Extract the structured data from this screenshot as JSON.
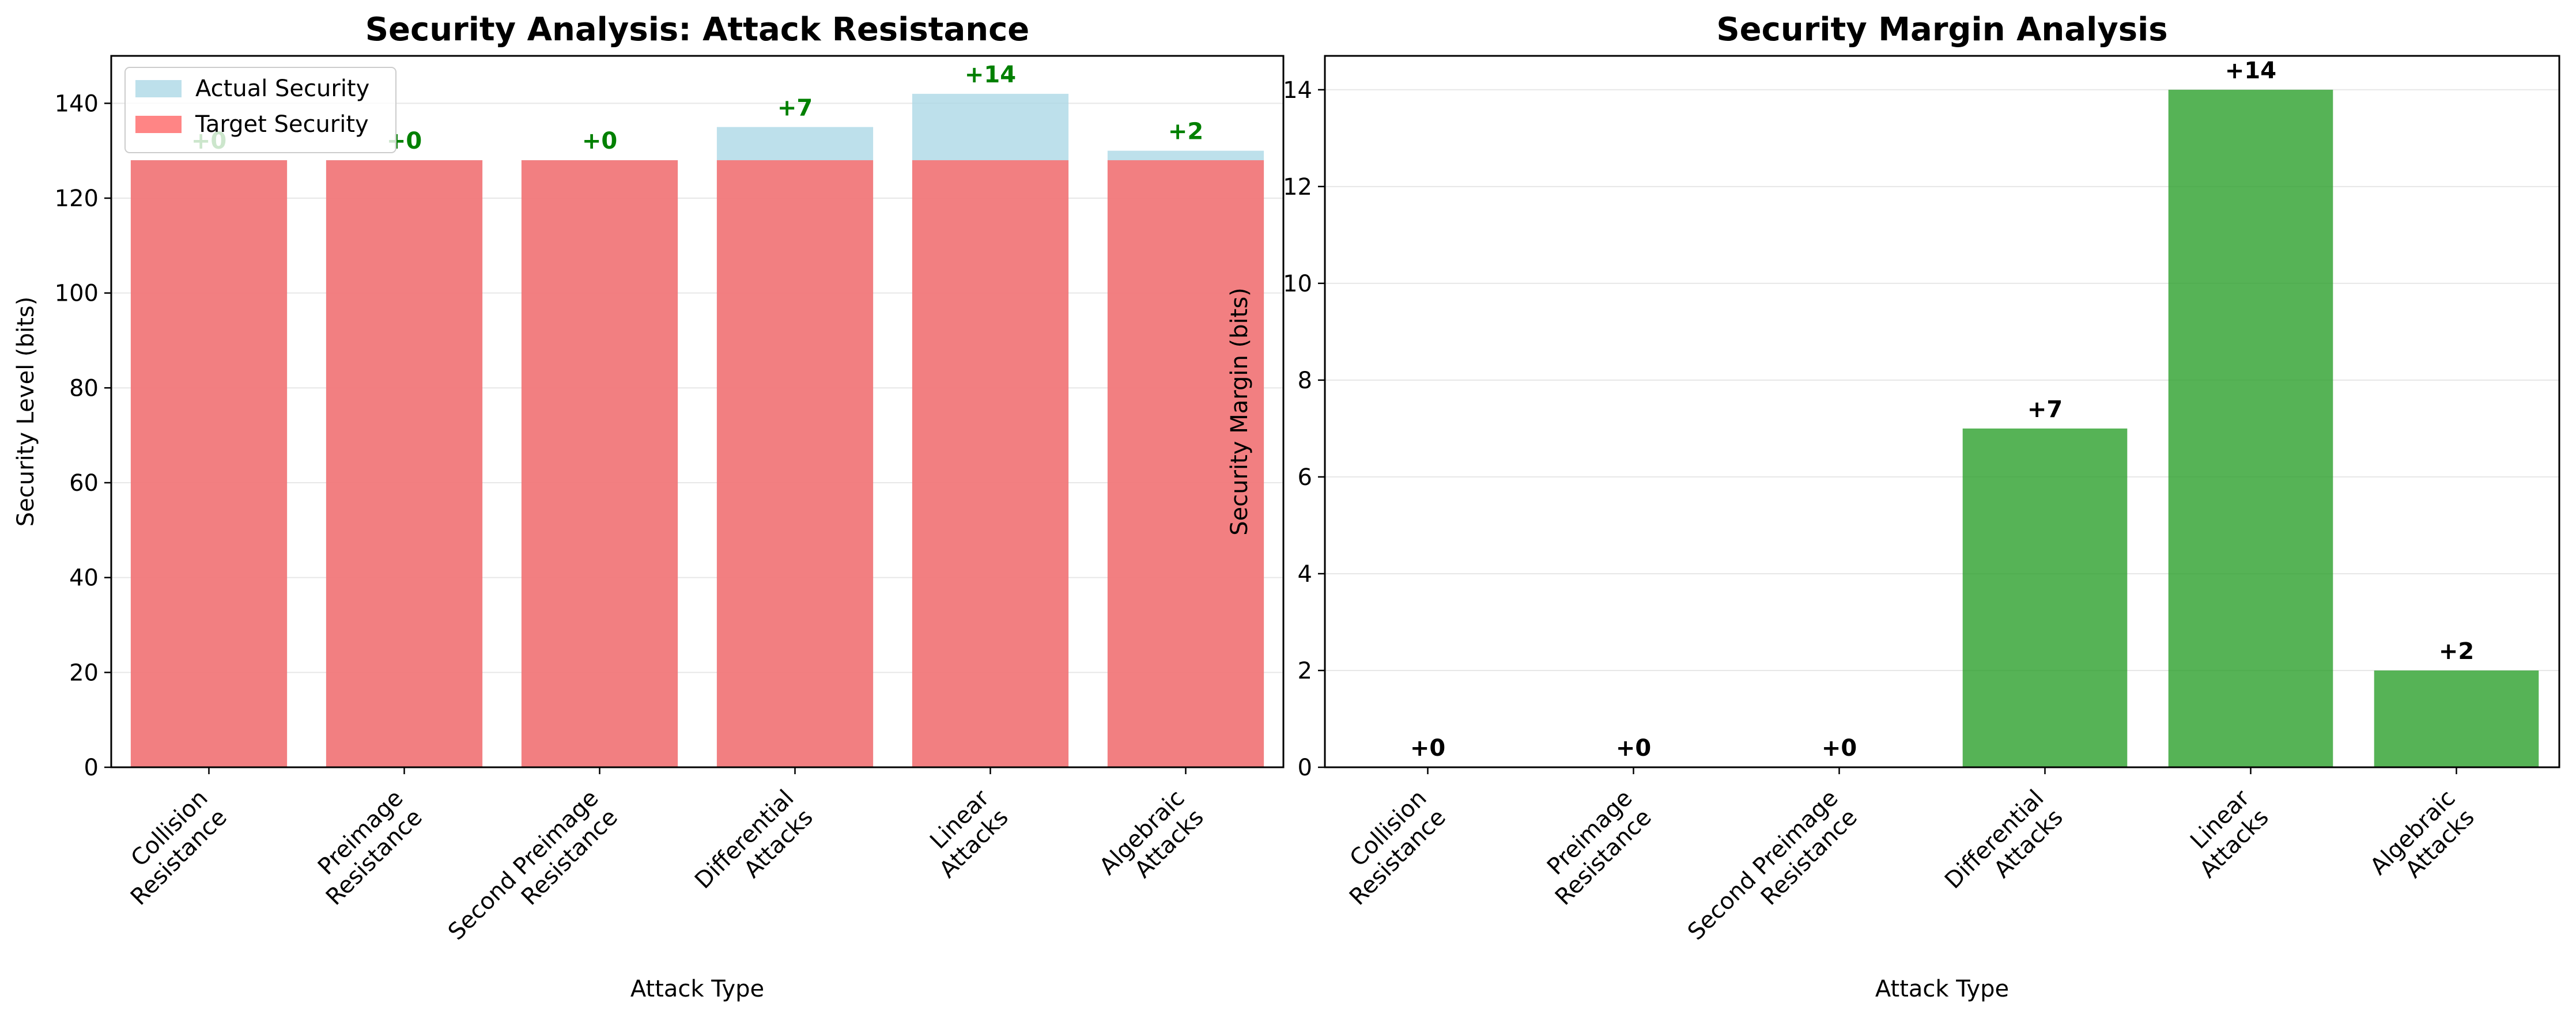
{
  "chart_data": [
    {
      "type": "bar",
      "title": "Security Analysis: Attack Resistance",
      "xlabel": "Attack Type",
      "ylabel": "Security Level (bits)",
      "categories": [
        [
          "Collision",
          "Resistance"
        ],
        [
          "Preimage",
          "Resistance"
        ],
        [
          "Second Preimage",
          "Resistance"
        ],
        [
          "Differential",
          "Attacks"
        ],
        [
          "Linear",
          "Attacks"
        ],
        [
          "Algebraic",
          "Attacks"
        ]
      ],
      "series": [
        {
          "name": "Actual Security",
          "values": [
            128,
            128,
            128,
            135,
            142,
            130
          ],
          "color": "#add8e6"
        },
        {
          "name": "Target Security",
          "values": [
            128,
            128,
            128,
            128,
            128,
            128
          ],
          "color": "#ff6666"
        }
      ],
      "bar_labels": [
        "+0",
        "+0",
        "+0",
        "+7",
        "+14",
        "+2"
      ],
      "bar_label_color": "#008000",
      "ylim": [
        0,
        150
      ],
      "yticks": [
        0,
        20,
        40,
        60,
        80,
        100,
        120,
        140
      ],
      "grid": "y",
      "legend": "top-left"
    },
    {
      "type": "bar",
      "title": "Security Margin Analysis",
      "xlabel": "Attack Type",
      "ylabel": "Security Margin (bits)",
      "categories": [
        [
          "Collision",
          "Resistance"
        ],
        [
          "Preimage",
          "Resistance"
        ],
        [
          "Second Preimage",
          "Resistance"
        ],
        [
          "Differential",
          "Attacks"
        ],
        [
          "Linear",
          "Attacks"
        ],
        [
          "Algebraic",
          "Attacks"
        ]
      ],
      "series": [
        {
          "values": [
            0,
            0,
            0,
            7,
            14,
            2
          ],
          "color": "#2ca02c"
        }
      ],
      "bar_labels": [
        "+0",
        "+0",
        "+0",
        "+7",
        "+14",
        "+2"
      ],
      "bar_label_color": "#000000",
      "ylim": [
        0,
        14.7
      ],
      "yticks": [
        0,
        2,
        4,
        6,
        8,
        10,
        12,
        14
      ],
      "grid": "y",
      "legend": "none"
    }
  ]
}
